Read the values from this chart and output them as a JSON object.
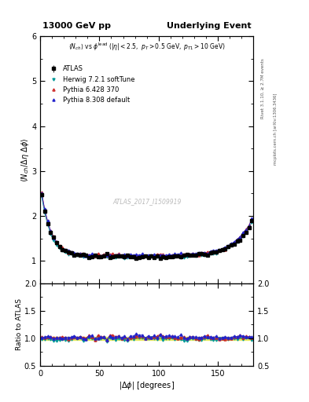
{
  "title_left": "13000 GeV pp",
  "title_right": "Underlying Event",
  "ylabel_main": "$\\langle N_{ch}/ \\Delta\\eta\\ \\Delta\\phi\\rangle$",
  "ylabel_ratio": "Ratio to ATLAS",
  "xlabel": "$|\\Delta\\phi|$ [degrees]",
  "annotation_line1": "$\\langle N_{ch}\\rangle$ vs $\\phi^{\\mathrm{lead}}$ ($|\\eta| < 2.5,\\ p_T > 0.5\\ \\mathrm{GeV},\\ p_{T1} > 10\\ \\mathrm{GeV}$)",
  "watermark": "ATLAS_2017_I1509919",
  "right_label1": "Rivet 3.1.10, ≥ 2.7M events",
  "right_label2": "mcplots.cern.ch [arXiv:1306.3436]",
  "ylim_main": [
    0.5,
    6.0
  ],
  "ylim_ratio": [
    0.5,
    2.0
  ],
  "xlim": [
    0,
    180
  ],
  "legend_entries": [
    "ATLAS",
    "Herwig 7.2.1 softTune",
    "Pythia 6.428 370",
    "Pythia 8.308 default"
  ],
  "colors": {
    "ATLAS": "#000000",
    "Herwig": "#009999",
    "Pythia6": "#cc2222",
    "Pythia8": "#2222cc"
  },
  "background_color": "#ffffff"
}
